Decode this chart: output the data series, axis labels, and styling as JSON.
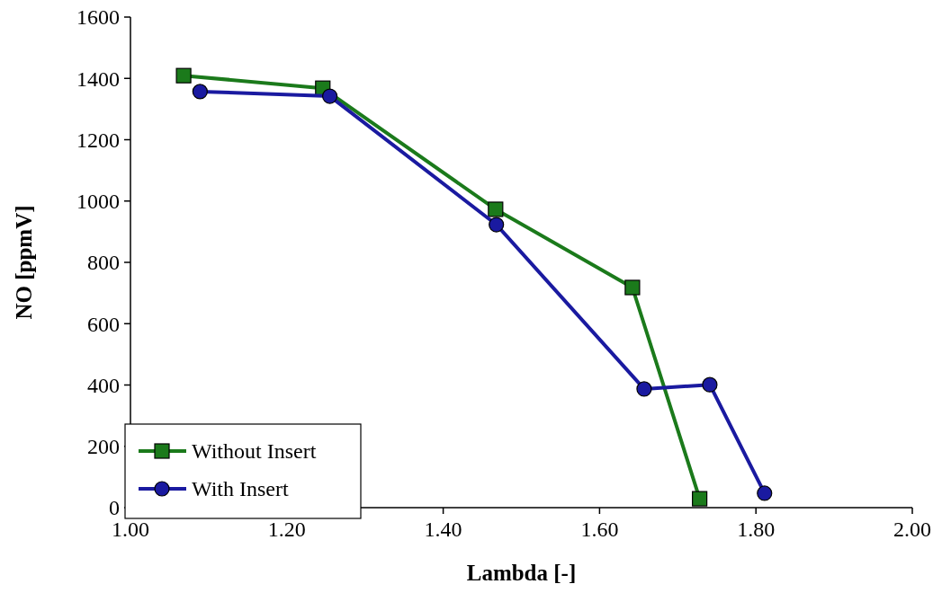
{
  "chart_data": {
    "type": "line",
    "xlabel": "Lambda [-]",
    "ylabel": "NO [ppmV]",
    "xlim": [
      1,
      2
    ],
    "xticks": [
      {
        "value": 1,
        "label": "1.00"
      },
      {
        "value": 1.2,
        "label": "1.20"
      },
      {
        "value": 1.4,
        "label": "1.40"
      },
      {
        "value": 1.6,
        "label": "1.60"
      },
      {
        "value": 1.8,
        "label": "1.80"
      },
      {
        "value": 2,
        "label": "2.00"
      }
    ],
    "ylim": [
      0,
      1600
    ],
    "yticks": [
      0,
      200,
      400,
      600,
      800,
      1000,
      1200,
      1400,
      1600
    ],
    "grid": false,
    "legend": "bottom left",
    "line_style": "solid",
    "series": [
      {
        "name": "Without Insert",
        "color": "#1b7a1b",
        "marker": "square",
        "x": [
          1.068,
          1.246,
          1.467,
          1.642,
          1.728
        ],
        "values": [
          1409,
          1368,
          973,
          718,
          29
        ]
      },
      {
        "name": "With Insert",
        "color": "#1a1aa0",
        "marker": "circle",
        "x": [
          1.089,
          1.255,
          1.468,
          1.657,
          1.741,
          1.811
        ],
        "values": [
          1357,
          1342,
          923,
          387,
          401,
          47
        ]
      }
    ]
  }
}
